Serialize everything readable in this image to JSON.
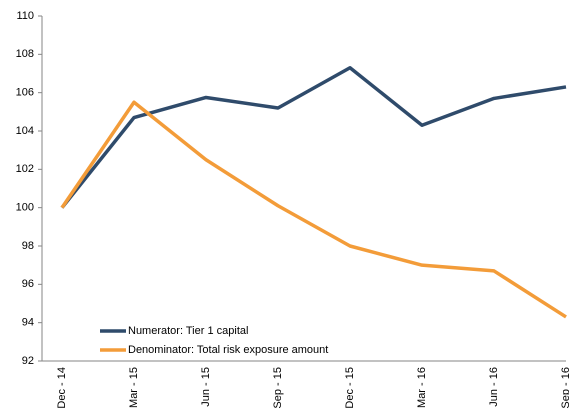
{
  "chart_data": {
    "type": "line",
    "categories": [
      "Dec - 14",
      "Mar - 15",
      "Jun - 15",
      "Sep - 15",
      "Dec - 15",
      "Mar - 16",
      "Jun - 16",
      "Sep - 16"
    ],
    "series": [
      {
        "name": "Numerator: Tier 1 capital",
        "color": "#2f4b6b",
        "values": [
          100,
          104.7,
          105.75,
          105.2,
          107.3,
          104.3,
          105.7,
          106.3
        ]
      },
      {
        "name": "Denominator: Total risk exposure amount",
        "color": "#f39c39",
        "values": [
          100,
          105.5,
          102.5,
          100.1,
          98.0,
          97.0,
          96.7,
          94.3
        ]
      }
    ],
    "ylim": [
      92,
      110
    ],
    "yticks": [
      92,
      94,
      96,
      98,
      100,
      102,
      104,
      106,
      108,
      110
    ],
    "grid": false,
    "legend": "lower left"
  }
}
